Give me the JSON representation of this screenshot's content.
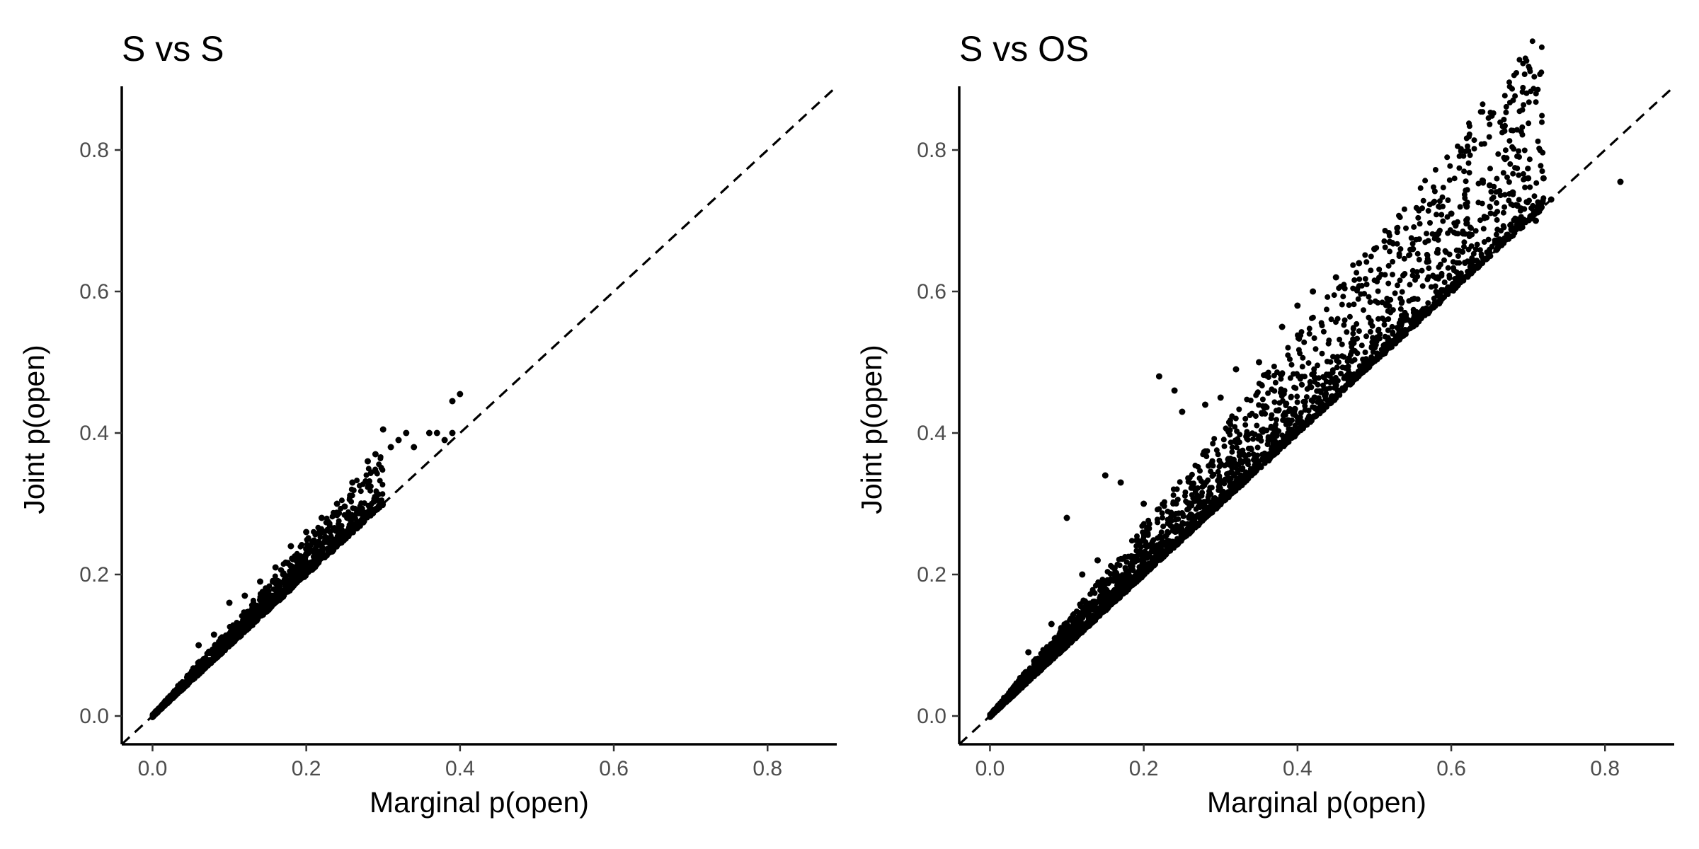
{
  "chart_data": [
    {
      "type": "scatter",
      "title": "S vs S",
      "xlabel": "Marginal p(open)",
      "ylabel": "Joint p(open)",
      "xlim": [
        -0.04,
        0.89
      ],
      "ylim": [
        -0.04,
        0.89
      ],
      "x_ticks": [
        0.0,
        0.2,
        0.4,
        0.6,
        0.8
      ],
      "y_ticks": [
        0.0,
        0.2,
        0.4,
        0.6,
        0.8
      ],
      "x_tick_labels": [
        "0.0",
        "0.2",
        "0.4",
        "0.6",
        "0.8"
      ],
      "y_tick_labels": [
        "0.0",
        "0.2",
        "0.4",
        "0.6",
        "0.8"
      ],
      "grid": false,
      "reference_line": "y = x (dashed)",
      "point_color": "#000000",
      "points": [
        [
          0.01,
          0.01
        ],
        [
          0.02,
          0.022
        ],
        [
          0.03,
          0.033
        ],
        [
          0.04,
          0.045
        ],
        [
          0.05,
          0.056
        ],
        [
          0.06,
          0.068
        ],
        [
          0.07,
          0.08
        ],
        [
          0.08,
          0.092
        ],
        [
          0.09,
          0.104
        ],
        [
          0.1,
          0.116
        ],
        [
          0.11,
          0.128
        ],
        [
          0.12,
          0.14
        ],
        [
          0.13,
          0.152
        ],
        [
          0.14,
          0.164
        ],
        [
          0.15,
          0.176
        ],
        [
          0.16,
          0.188
        ],
        [
          0.17,
          0.2
        ],
        [
          0.18,
          0.212
        ],
        [
          0.19,
          0.224
        ],
        [
          0.2,
          0.236
        ],
        [
          0.21,
          0.248
        ],
        [
          0.22,
          0.26
        ],
        [
          0.23,
          0.272
        ],
        [
          0.24,
          0.284
        ],
        [
          0.25,
          0.296
        ],
        [
          0.06,
          0.1
        ],
        [
          0.08,
          0.115
        ],
        [
          0.1,
          0.16
        ],
        [
          0.12,
          0.17
        ],
        [
          0.14,
          0.19
        ],
        [
          0.16,
          0.21
        ],
        [
          0.18,
          0.24
        ],
        [
          0.2,
          0.26
        ],
        [
          0.22,
          0.28
        ],
        [
          0.24,
          0.3
        ],
        [
          0.26,
          0.33
        ],
        [
          0.28,
          0.36
        ],
        [
          0.29,
          0.37
        ],
        [
          0.3,
          0.405
        ],
        [
          0.31,
          0.38
        ],
        [
          0.32,
          0.39
        ],
        [
          0.33,
          0.4
        ],
        [
          0.34,
          0.38
        ],
        [
          0.36,
          0.4
        ],
        [
          0.37,
          0.4
        ],
        [
          0.38,
          0.39
        ],
        [
          0.39,
          0.4
        ],
        [
          0.4,
          0.455
        ],
        [
          0.39,
          0.445
        ]
      ],
      "dense_band": {
        "x_range": [
          0.0,
          0.3
        ],
        "slope_low": 1.0,
        "slope_high": 1.25,
        "count": 1800
      }
    },
    {
      "type": "scatter",
      "title": "S vs OS",
      "xlabel": "Marginal p(open)",
      "ylabel": "Joint p(open)",
      "xlim": [
        -0.04,
        0.89
      ],
      "ylim": [
        -0.04,
        0.89
      ],
      "x_ticks": [
        0.0,
        0.2,
        0.4,
        0.6,
        0.8
      ],
      "y_ticks": [
        0.0,
        0.2,
        0.4,
        0.6,
        0.8
      ],
      "x_tick_labels": [
        "0.0",
        "0.2",
        "0.4",
        "0.6",
        "0.8"
      ],
      "y_tick_labels": [
        "0.0",
        "0.2",
        "0.4",
        "0.6",
        "0.8"
      ],
      "grid": false,
      "reference_line": "y = x (dashed)",
      "point_color": "#000000",
      "points": [
        [
          0.05,
          0.09
        ],
        [
          0.08,
          0.13
        ],
        [
          0.1,
          0.28
        ],
        [
          0.12,
          0.2
        ],
        [
          0.14,
          0.22
        ],
        [
          0.15,
          0.34
        ],
        [
          0.17,
          0.33
        ],
        [
          0.2,
          0.3
        ],
        [
          0.22,
          0.48
        ],
        [
          0.24,
          0.46
        ],
        [
          0.25,
          0.43
        ],
        [
          0.28,
          0.44
        ],
        [
          0.3,
          0.45
        ],
        [
          0.32,
          0.49
        ],
        [
          0.35,
          0.5
        ],
        [
          0.38,
          0.55
        ],
        [
          0.4,
          0.58
        ],
        [
          0.42,
          0.6
        ],
        [
          0.45,
          0.62
        ],
        [
          0.48,
          0.64
        ],
        [
          0.5,
          0.66
        ],
        [
          0.52,
          0.67
        ],
        [
          0.55,
          0.66
        ],
        [
          0.58,
          0.68
        ],
        [
          0.6,
          0.71
        ],
        [
          0.62,
          0.72
        ],
        [
          0.65,
          0.75
        ],
        [
          0.68,
          0.74
        ],
        [
          0.7,
          0.76
        ],
        [
          0.72,
          0.76
        ],
        [
          0.73,
          0.73
        ],
        [
          0.71,
          0.7
        ],
        [
          0.82,
          0.755
        ]
      ],
      "dense_band": {
        "x_range": [
          0.0,
          0.72
        ],
        "slope_low": 1.0,
        "slope_high": 1.35,
        "count": 3600
      }
    }
  ]
}
